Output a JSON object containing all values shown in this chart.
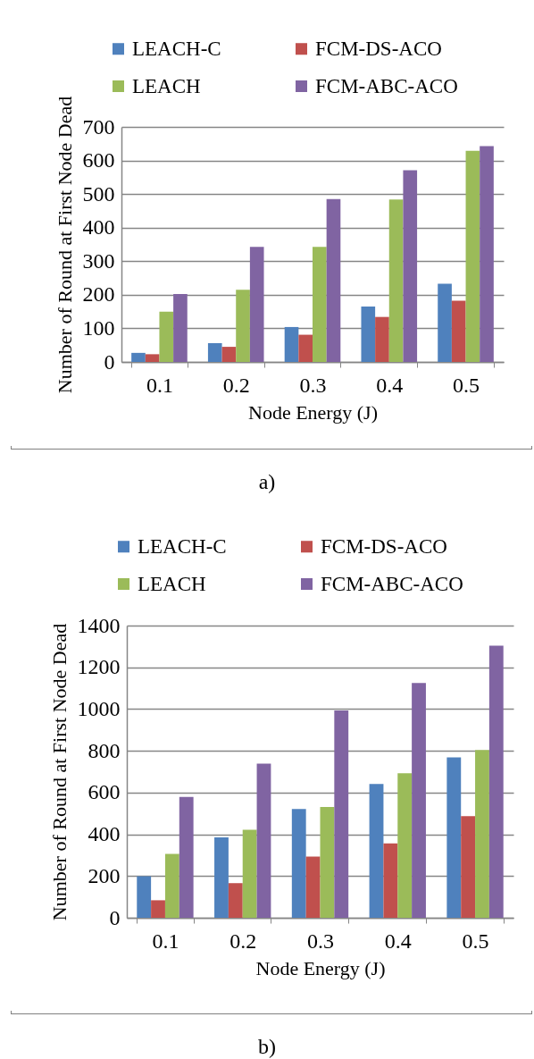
{
  "chart_data": [
    {
      "type": "bar",
      "xlabel": "Node Energy (J)",
      "ylabel": "Number of Round at First Node Dead",
      "categories": [
        "0.1",
        "0.2",
        "0.3",
        "0.4",
        "0.5"
      ],
      "series": [
        {
          "name": "LEACH-C",
          "color": "#4f81bd",
          "values": [
            27,
            56,
            104,
            165,
            233
          ]
        },
        {
          "name": "FCM-DS-ACO",
          "color": "#c0504d",
          "values": [
            23,
            45,
            81,
            134,
            182
          ]
        },
        {
          "name": "LEACH",
          "color": "#9bbb59",
          "values": [
            150,
            215,
            343,
            484,
            629
          ]
        },
        {
          "name": "FCM-ABC-ACO",
          "color": "#8064a2",
          "values": [
            202,
            343,
            485,
            571,
            643
          ]
        }
      ],
      "ylim": [
        0,
        700
      ],
      "yticks": [
        0,
        100,
        200,
        300,
        400,
        500,
        600,
        700
      ],
      "grid": "y",
      "legend": "top",
      "annotations": [
        "a)"
      ]
    },
    {
      "type": "bar",
      "xlabel": "Node Energy (J)",
      "ylabel": "Number of Round at First Node Dead",
      "categories": [
        "0.1",
        "0.2",
        "0.3",
        "0.4",
        "0.5"
      ],
      "series": [
        {
          "name": "LEACH-C",
          "color": "#4f81bd",
          "values": [
            199,
            385,
            521,
            641,
            768
          ]
        },
        {
          "name": "FCM-DS-ACO",
          "color": "#c0504d",
          "values": [
            84,
            166,
            293,
            356,
            487
          ]
        },
        {
          "name": "LEACH",
          "color": "#9bbb59",
          "values": [
            306,
            422,
            531,
            693,
            804
          ]
        },
        {
          "name": "FCM-ABC-ACO",
          "color": "#8064a2",
          "values": [
            579,
            738,
            993,
            1125,
            1304
          ]
        }
      ],
      "ylim": [
        0,
        1400
      ],
      "yticks": [
        0,
        200,
        400,
        600,
        800,
        1000,
        1200,
        1400
      ],
      "grid": "y",
      "legend": "top",
      "annotations": [
        "b)"
      ]
    }
  ]
}
